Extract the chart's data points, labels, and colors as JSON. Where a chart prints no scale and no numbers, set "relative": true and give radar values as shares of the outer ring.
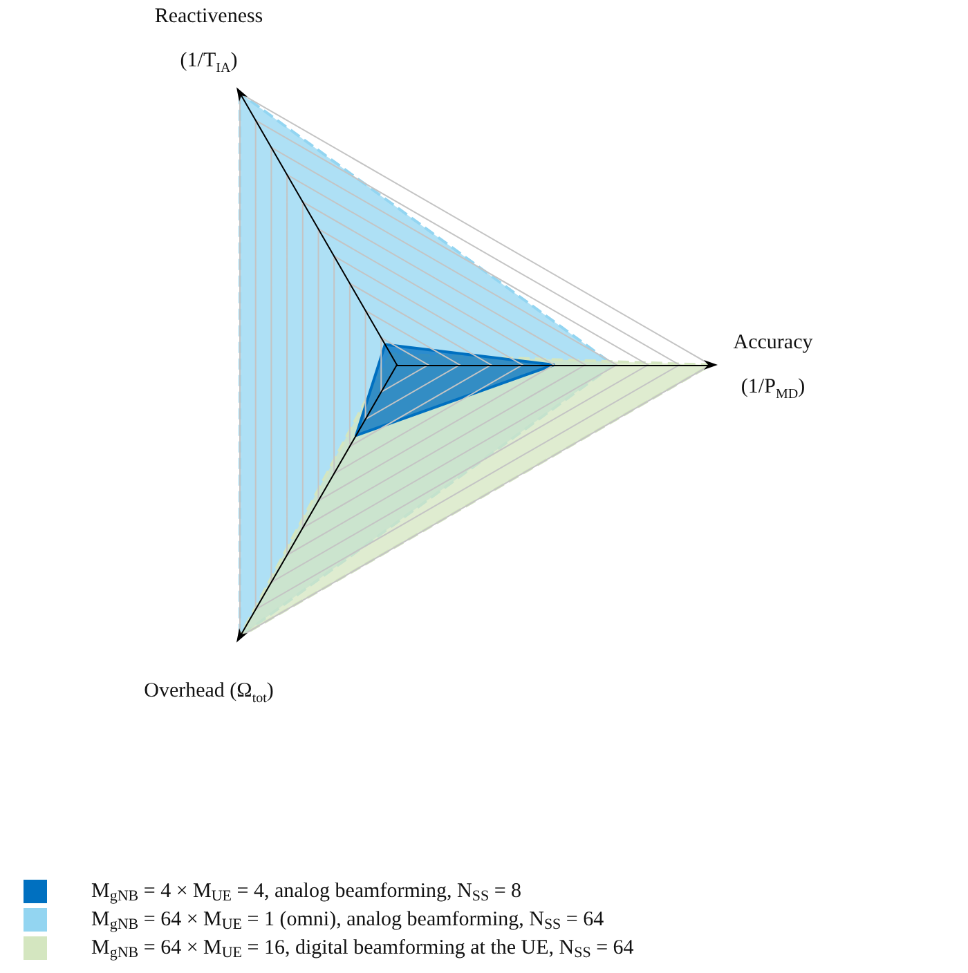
{
  "chart_data": {
    "type": "radar",
    "relative": true,
    "categories": [
      "Reactiveness\n(1/T$_{IA}$)",
      "Accuracy\n(1/P$_{MD}$)",
      "Overhead (Ω$_{tot}$)"
    ],
    "series": [
      {
        "name": "M$_{gNB}$ = 4 × M$_{UE}$ = 4, analog beamforming, N$_{SS}$ = 8",
        "color": "#0070c0",
        "values": [
          0.075,
          0.5,
          0.26
        ],
        "line_style": "solid"
      },
      {
        "name": "M$_{gNB}$ = 64 × M$_{UE}$ = 1 (omni), analog beamforming, N$_{SS}$ = 64",
        "color": "#93d5f1",
        "values": [
          1,
          0.69,
          1
        ],
        "line_style": "dashed"
      },
      {
        "name": "M$_{gNB}$ = 64 × M$_{UE}$ = 16, digital beamforming at the UE, N$_{SS}$ = 64",
        "color": "#d4e6c0",
        "values": [
          0.04,
          1,
          1
        ],
        "line_style": "dashed"
      }
    ],
    "grid": true,
    "legend": "bottom left",
    "marker": "none"
  }
}
